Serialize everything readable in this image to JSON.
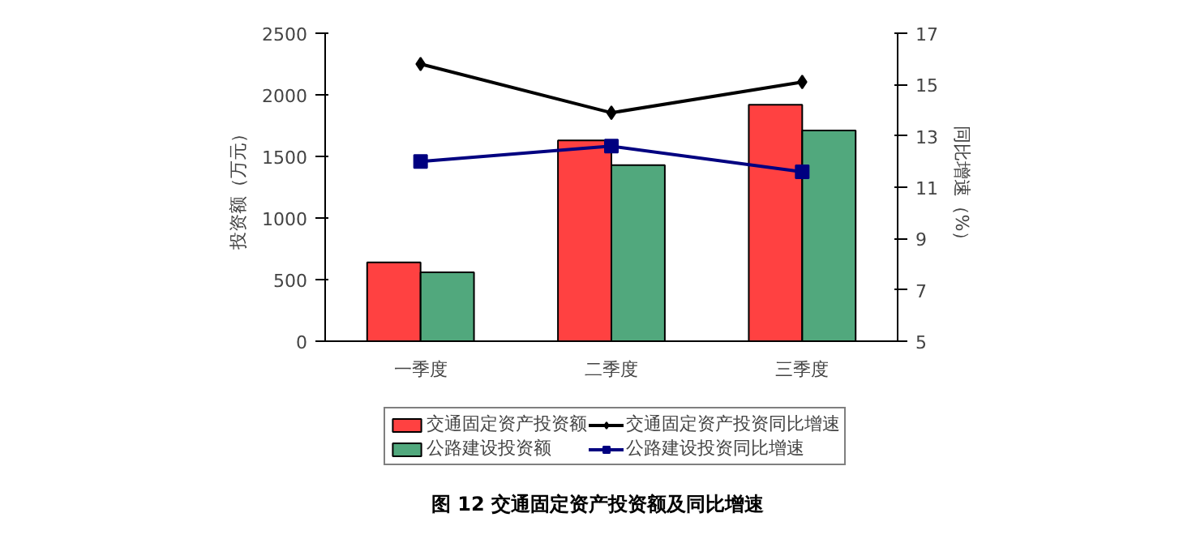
{
  "chart_data": {
    "type": "bar",
    "title": "图 12 交通固定资产投资额及同比增速",
    "categories": [
      "一季度",
      "二季度",
      "三季度"
    ],
    "ylabel": "投资额（万元）",
    "y2label": "同比增速（%）",
    "ylim": [
      0,
      2500
    ],
    "yticks": [
      0,
      500,
      1000,
      1500,
      2000,
      2500
    ],
    "y2lim": [
      5,
      17
    ],
    "y2ticks": [
      5,
      7,
      9,
      11,
      13,
      15,
      17
    ],
    "grid": false,
    "legend": "bottom",
    "series": [
      {
        "name": "交通固定资产投资额",
        "color": "#ff2020",
        "values": [
          640,
          1630,
          1920
        ]
      },
      {
        "name": "公路建设投资额",
        "color": "#339966",
        "values": [
          560,
          1430,
          1710
        ]
      },
      {
        "name": "交通固定资产投资同比增速",
        "type": "line",
        "axis": "y2",
        "marker": "diamond",
        "color": "#000000",
        "values": [
          15.8,
          13.9,
          15.1
        ]
      },
      {
        "name": "公路建设投资同比增速",
        "type": "line",
        "axis": "y2",
        "marker": "square",
        "color": "#000080",
        "values": [
          12.0,
          12.6,
          11.6
        ]
      }
    ]
  }
}
